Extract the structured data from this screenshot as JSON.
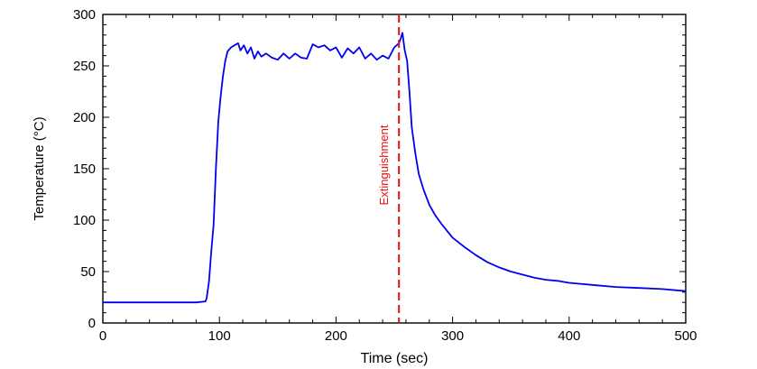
{
  "chart_data": {
    "type": "line",
    "title": "",
    "xlabel": "Time (sec)",
    "ylabel": "Temperature (°C)",
    "xlim": [
      0,
      500
    ],
    "ylim": [
      0,
      300
    ],
    "x_ticks": [
      0,
      100,
      200,
      300,
      400,
      500
    ],
    "y_ticks": [
      0,
      50,
      100,
      150,
      200,
      250,
      300
    ],
    "grid": false,
    "line_color": "#0000ee",
    "series": [
      {
        "x": [
          0,
          20,
          40,
          60,
          80,
          88,
          89,
          91,
          93,
          95,
          97,
          99,
          101,
          103,
          105,
          107,
          110,
          113,
          116,
          118,
          121,
          124,
          127,
          130,
          133,
          136,
          140,
          145,
          150,
          155,
          160,
          165,
          170,
          175,
          180,
          185,
          190,
          195,
          200,
          205,
          210,
          215,
          220,
          225,
          230,
          235,
          240,
          245,
          250,
          254,
          255,
          257,
          259,
          261,
          263,
          265,
          268,
          271,
          275,
          280,
          285,
          290,
          295,
          300,
          310,
          320,
          330,
          340,
          350,
          360,
          370,
          380,
          390,
          400,
          420,
          440,
          460,
          480,
          500
        ],
        "y": [
          20,
          20,
          20,
          20,
          20,
          21,
          24,
          40,
          70,
          95,
          150,
          195,
          220,
          240,
          255,
          264,
          268,
          270,
          272,
          265,
          270,
          262,
          268,
          257,
          264,
          259,
          262,
          258,
          256,
          262,
          257,
          262,
          258,
          257,
          271,
          268,
          270,
          265,
          268,
          258,
          267,
          262,
          268,
          257,
          262,
          256,
          260,
          257,
          268,
          272,
          275,
          282,
          265,
          255,
          225,
          190,
          165,
          145,
          130,
          115,
          105,
          97,
          90,
          83,
          74,
          66,
          59,
          54,
          50,
          47,
          44,
          42,
          41,
          39,
          37,
          35,
          34,
          33,
          31
        ]
      }
    ],
    "annotation": {
      "label": "Extinguishment",
      "x": 254,
      "color": "#e81010",
      "style": "dashed"
    }
  }
}
